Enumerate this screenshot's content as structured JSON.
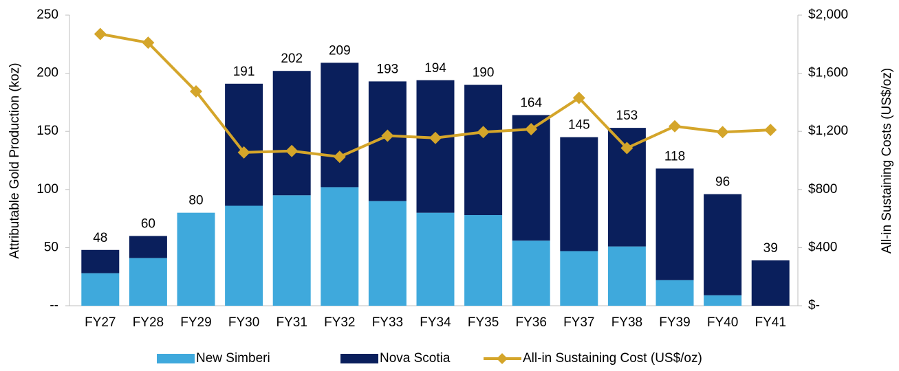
{
  "chart_data": {
    "type": "bar",
    "stacked": true,
    "y_label": "Attributable Gold Production (koz)",
    "y2_label": "All-in Sustaining Costs (US$/oz)",
    "categories": [
      "FY27",
      "FY28",
      "FY29",
      "FY30",
      "FY31",
      "FY32",
      "FY33",
      "FY34",
      "FY35",
      "FY36",
      "FY37",
      "FY38",
      "FY39",
      "FY40",
      "FY41"
    ],
    "series": [
      {
        "name": "New Simberi",
        "color": "#3fa9dc",
        "type": "bar",
        "values": [
          28,
          41,
          80,
          86,
          95,
          102,
          90,
          80,
          78,
          56,
          47,
          51,
          22,
          9,
          0
        ]
      },
      {
        "name": "Nova Scotia",
        "color": "#0a1f5c",
        "type": "bar",
        "values": [
          20,
          19,
          0,
          105,
          107,
          107,
          103,
          114,
          112,
          108,
          98,
          102,
          96,
          87,
          39
        ]
      },
      {
        "name": "All-in Sustaining Cost (US$/oz)",
        "color": "#d4a52a",
        "type": "line",
        "axis": "y2",
        "values": [
          1870,
          1810,
          1475,
          1055,
          1065,
          1025,
          1170,
          1155,
          1195,
          1215,
          1430,
          1085,
          1235,
          1195,
          1210
        ]
      }
    ],
    "totals": [
      48,
      60,
      80,
      191,
      202,
      209,
      193,
      194,
      190,
      164,
      145,
      153,
      118,
      96,
      39
    ],
    "ylim": [
      0,
      250
    ],
    "yticks": [
      {
        "value": 0,
        "label": "--"
      },
      50,
      100,
      150,
      200,
      250
    ],
    "y2lim": [
      0,
      2000
    ],
    "y2ticks": [
      {
        "value": 0,
        "label": "$-"
      },
      {
        "value": 400,
        "label": "$400"
      },
      {
        "value": 800,
        "label": "$800"
      },
      {
        "value": 1200,
        "label": "$1,200"
      },
      {
        "value": 1600,
        "label": "$1,600"
      },
      {
        "value": 2000,
        "label": "$2,000"
      }
    ],
    "legend": "bottom"
  }
}
